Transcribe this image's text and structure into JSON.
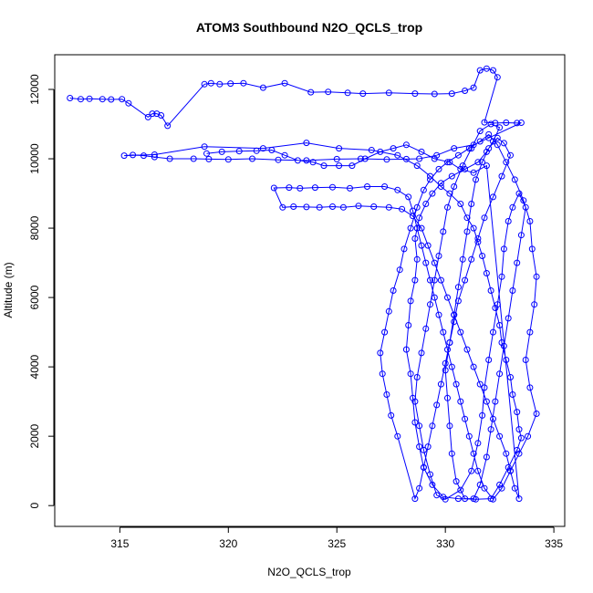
{
  "chart_data": {
    "type": "scatter",
    "title": "ATOM3 Southbound N2O_QCLS_trop",
    "xlabel": "N2O_QCLS_trop",
    "ylabel": "Altitude (m)",
    "xlim": [
      312,
      335.5
    ],
    "ylim": [
      -600,
      13000
    ],
    "x_ticks": [
      315,
      320,
      325,
      330,
      335
    ],
    "y_ticks": [
      0,
      2000,
      4000,
      6000,
      8000,
      10000,
      12000
    ],
    "x_tick_labels": [
      "315",
      "320",
      "325",
      "330",
      "335"
    ],
    "y_tick_labels": [
      "0",
      "2000",
      "4000",
      "6000",
      "8000",
      "10000",
      "12000"
    ],
    "grid": false,
    "legend": "none",
    "series_color": "#0000ff",
    "markers": "open circles connected by lines",
    "series": [
      {
        "points": [
          [
            312.7,
            11750
          ],
          [
            313.2,
            11720
          ],
          [
            313.6,
            11730
          ],
          [
            314.2,
            11720
          ],
          [
            314.6,
            11710
          ],
          [
            315.1,
            11720
          ],
          [
            315.4,
            11600
          ],
          [
            316.3,
            11200
          ],
          [
            316.5,
            11300
          ],
          [
            316.7,
            11300
          ],
          [
            316.9,
            11250
          ],
          [
            317.2,
            10950
          ],
          [
            318.9,
            12150
          ],
          [
            319.2,
            12180
          ],
          [
            319.6,
            12150
          ],
          [
            320.1,
            12170
          ],
          [
            320.7,
            12180
          ],
          [
            321.6,
            12050
          ],
          [
            322.6,
            12180
          ],
          [
            323.8,
            11920
          ],
          [
            324.6,
            11930
          ],
          [
            325.5,
            11900
          ],
          [
            326.2,
            11880
          ],
          [
            327.4,
            11900
          ],
          [
            328.6,
            11880
          ],
          [
            329.5,
            11870
          ],
          [
            330.3,
            11880
          ],
          [
            330.9,
            11960
          ],
          [
            331.3,
            12050
          ],
          [
            331.6,
            12550
          ],
          [
            331.9,
            12600
          ],
          [
            332.2,
            12550
          ],
          [
            332.4,
            12350
          ],
          [
            331.8,
            11050
          ],
          [
            332.3,
            11030
          ],
          [
            332.8,
            11040
          ],
          [
            333.3,
            11030
          ],
          [
            333.5,
            11040
          ],
          [
            332.0,
            10600
          ],
          [
            331.3,
            10400
          ],
          [
            330.4,
            10300
          ],
          [
            329.6,
            10100
          ],
          [
            328.8,
            10000
          ],
          [
            328.2,
            9990
          ],
          [
            327.3,
            9980
          ],
          [
            326.1,
            10000
          ],
          [
            325.0,
            9990
          ],
          [
            323.6,
            9950
          ],
          [
            322.3,
            9970
          ],
          [
            321.1,
            10000
          ],
          [
            320.0,
            9980
          ],
          [
            319.1,
            9990
          ],
          [
            318.4,
            10000
          ],
          [
            317.3,
            10000
          ],
          [
            316.6,
            10050
          ],
          [
            316.1,
            10090
          ],
          [
            315.6,
            10110
          ],
          [
            315.2,
            10090
          ],
          [
            316.6,
            10120
          ],
          [
            318.9,
            10350
          ],
          [
            321.6,
            10300
          ],
          [
            323.6,
            10460
          ],
          [
            325.1,
            10300
          ],
          [
            326.6,
            10250
          ],
          [
            327.8,
            10100
          ],
          [
            328.7,
            9800
          ],
          [
            329.3,
            9500
          ],
          [
            329.8,
            9200
          ],
          [
            330.2,
            9000
          ],
          [
            330.7,
            8700
          ],
          [
            331.0,
            8300
          ],
          [
            331.3,
            8000
          ],
          [
            331.5,
            7600
          ],
          [
            331.7,
            7200
          ],
          [
            331.9,
            6700
          ],
          [
            332.1,
            6200
          ],
          [
            332.3,
            5700
          ],
          [
            332.5,
            5200
          ],
          [
            332.6,
            4700
          ],
          [
            332.8,
            4200
          ],
          [
            333.0,
            3700
          ],
          [
            333.1,
            3200
          ],
          [
            333.3,
            2700
          ],
          [
            333.4,
            2200
          ],
          [
            333.5,
            1950
          ],
          [
            333.3,
            1600
          ],
          [
            332.9,
            1100
          ],
          [
            332.5,
            600
          ],
          [
            332.1,
            200
          ],
          [
            331.4,
            180
          ],
          [
            330.6,
            200
          ],
          [
            329.9,
            250
          ],
          [
            329.4,
            600
          ],
          [
            329.0,
            1100
          ],
          [
            328.8,
            1700
          ],
          [
            328.6,
            2400
          ],
          [
            328.5,
            3100
          ],
          [
            328.4,
            3800
          ],
          [
            328.2,
            4500
          ],
          [
            328.3,
            5200
          ],
          [
            328.4,
            5900
          ],
          [
            328.6,
            6500
          ],
          [
            328.7,
            7100
          ],
          [
            328.6,
            7700
          ],
          [
            328.8,
            8300
          ],
          [
            329.1,
            8700
          ],
          [
            329.4,
            9000
          ],
          [
            329.8,
            9300
          ],
          [
            330.3,
            9500
          ],
          [
            330.9,
            9700
          ],
          [
            331.5,
            9900
          ],
          [
            331.9,
            10200
          ],
          [
            332.2,
            10500
          ],
          [
            332.5,
            10900
          ],
          [
            332.1,
            11000
          ],
          [
            331.6,
            10800
          ],
          [
            331.2,
            10300
          ],
          [
            330.8,
            9800
          ],
          [
            330.4,
            9200
          ],
          [
            330.1,
            8600
          ],
          [
            329.9,
            7900
          ],
          [
            329.7,
            7200
          ],
          [
            329.5,
            6500
          ],
          [
            329.3,
            5800
          ],
          [
            329.1,
            5100
          ],
          [
            328.9,
            4400
          ],
          [
            328.7,
            3700
          ],
          [
            328.6,
            3000
          ],
          [
            328.8,
            2300
          ],
          [
            329.0,
            1600
          ],
          [
            329.3,
            900
          ],
          [
            329.6,
            300
          ],
          [
            330.0,
            180
          ],
          [
            330.7,
            450
          ],
          [
            331.2,
            1000
          ],
          [
            331.5,
            1800
          ],
          [
            331.7,
            2600
          ],
          [
            331.8,
            3400
          ],
          [
            332.0,
            4200
          ],
          [
            332.2,
            5000
          ],
          [
            332.4,
            5800
          ],
          [
            332.6,
            6600
          ],
          [
            332.7,
            7400
          ],
          [
            332.9,
            8200
          ],
          [
            333.1,
            8600
          ],
          [
            333.4,
            9000
          ],
          [
            333.7,
            8600
          ],
          [
            333.5,
            7800
          ],
          [
            333.3,
            7000
          ],
          [
            333.1,
            6200
          ],
          [
            332.9,
            5400
          ],
          [
            332.7,
            4600
          ],
          [
            332.5,
            3800
          ],
          [
            332.3,
            3000
          ],
          [
            332.1,
            2200
          ],
          [
            331.9,
            1400
          ],
          [
            331.6,
            600
          ],
          [
            331.3,
            200
          ],
          [
            330.9,
            200
          ],
          [
            330.5,
            700
          ],
          [
            330.3,
            1500
          ],
          [
            330.2,
            2300
          ],
          [
            330.1,
            3100
          ],
          [
            330.0,
            3900
          ],
          [
            330.2,
            4700
          ],
          [
            330.4,
            5500
          ],
          [
            330.6,
            6300
          ],
          [
            330.8,
            7100
          ],
          [
            331.0,
            7900
          ],
          [
            331.2,
            8700
          ],
          [
            331.4,
            9400
          ],
          [
            331.7,
            9900
          ],
          [
            332.0,
            10300
          ],
          [
            332.4,
            10600
          ],
          [
            332.7,
            10450
          ],
          [
            333.0,
            10100
          ],
          [
            332.6,
            9500
          ],
          [
            332.2,
            8900
          ],
          [
            331.8,
            8300
          ],
          [
            331.5,
            7700
          ],
          [
            331.2,
            7100
          ],
          [
            330.9,
            6500
          ],
          [
            330.6,
            5900
          ],
          [
            330.4,
            5300
          ],
          [
            330.2,
            4700
          ],
          [
            330.0,
            4100
          ],
          [
            329.8,
            3500
          ],
          [
            329.6,
            2900
          ],
          [
            329.4,
            2300
          ],
          [
            329.2,
            1700
          ],
          [
            329.0,
            1100
          ],
          [
            328.8,
            500
          ],
          [
            328.6,
            200
          ],
          [
            327.8,
            2000
          ],
          [
            327.5,
            2600
          ],
          [
            327.3,
            3200
          ],
          [
            327.1,
            3800
          ],
          [
            327.0,
            4400
          ],
          [
            327.2,
            5000
          ],
          [
            327.4,
            5600
          ],
          [
            327.6,
            6200
          ],
          [
            327.9,
            6800
          ],
          [
            328.1,
            7400
          ],
          [
            328.4,
            8000
          ],
          [
            328.7,
            8600
          ],
          [
            329.0,
            9100
          ],
          [
            329.3,
            9400
          ],
          [
            329.7,
            9700
          ],
          [
            330.1,
            9900
          ],
          [
            330.6,
            10100
          ],
          [
            331.1,
            10300
          ],
          [
            331.6,
            10500
          ],
          [
            332.0,
            10700
          ],
          [
            332.4,
            10400
          ],
          [
            332.8,
            9900
          ],
          [
            333.2,
            9400
          ],
          [
            333.6,
            8800
          ],
          [
            333.9,
            8200
          ],
          [
            334.0,
            7400
          ],
          [
            334.2,
            6600
          ],
          [
            334.1,
            5800
          ],
          [
            333.9,
            5000
          ],
          [
            333.7,
            4200
          ],
          [
            333.9,
            3400
          ],
          [
            334.2,
            2650
          ],
          [
            333.8,
            2000
          ],
          [
            333.4,
            1500
          ],
          [
            333.0,
            1000
          ],
          [
            332.6,
            500
          ],
          [
            332.2,
            180
          ],
          [
            331.8,
            500
          ],
          [
            331.5,
            1000
          ],
          [
            331.3,
            1500
          ],
          [
            331.1,
            2000
          ],
          [
            330.9,
            2500
          ],
          [
            330.7,
            3000
          ],
          [
            330.5,
            3500
          ],
          [
            330.3,
            4000
          ],
          [
            330.1,
            4500
          ],
          [
            329.9,
            5000
          ],
          [
            329.7,
            5500
          ],
          [
            329.5,
            6000
          ],
          [
            329.3,
            6500
          ],
          [
            329.1,
            7000
          ],
          [
            328.9,
            7500
          ],
          [
            328.7,
            8000
          ],
          [
            328.5,
            8500
          ],
          [
            328.3,
            8900
          ],
          [
            327.8,
            9100
          ],
          [
            327.2,
            9200
          ],
          [
            326.4,
            9200
          ],
          [
            325.6,
            9150
          ],
          [
            324.8,
            9180
          ],
          [
            324.0,
            9170
          ],
          [
            323.3,
            9150
          ],
          [
            322.8,
            9170
          ],
          [
            322.1,
            9160
          ],
          [
            322.5,
            8600
          ],
          [
            323.0,
            8620
          ],
          [
            323.6,
            8610
          ],
          [
            324.2,
            8600
          ],
          [
            324.8,
            8620
          ],
          [
            325.3,
            8600
          ],
          [
            326.0,
            8640
          ],
          [
            326.7,
            8620
          ],
          [
            327.4,
            8600
          ],
          [
            328.0,
            8550
          ],
          [
            328.5,
            8350
          ],
          [
            328.9,
            8000
          ],
          [
            329.2,
            7500
          ],
          [
            329.5,
            7000
          ],
          [
            329.8,
            6500
          ],
          [
            330.1,
            6000
          ],
          [
            330.4,
            5500
          ],
          [
            330.7,
            5000
          ],
          [
            331.0,
            4500
          ],
          [
            331.3,
            4000
          ],
          [
            331.6,
            3500
          ],
          [
            331.9,
            3000
          ],
          [
            332.2,
            2500
          ],
          [
            332.5,
            2000
          ],
          [
            332.8,
            1500
          ],
          [
            333.0,
            1000
          ],
          [
            333.2,
            500
          ],
          [
            333.4,
            200
          ],
          [
            331.9,
            9800
          ],
          [
            331.3,
            9600
          ],
          [
            330.7,
            9700
          ],
          [
            330.2,
            9900
          ],
          [
            329.5,
            10000
          ],
          [
            328.9,
            10200
          ],
          [
            328.2,
            10400
          ],
          [
            327.6,
            10300
          ],
          [
            327.0,
            10200
          ],
          [
            326.3,
            10000
          ],
          [
            325.7,
            9800
          ],
          [
            325.1,
            9800
          ],
          [
            324.4,
            9800
          ],
          [
            323.9,
            9900
          ],
          [
            323.2,
            9950
          ],
          [
            322.6,
            10100
          ],
          [
            322.0,
            10250
          ],
          [
            321.3,
            10230
          ],
          [
            320.5,
            10220
          ],
          [
            319.7,
            10200
          ],
          [
            319.0,
            10150
          ]
        ]
      }
    ]
  }
}
